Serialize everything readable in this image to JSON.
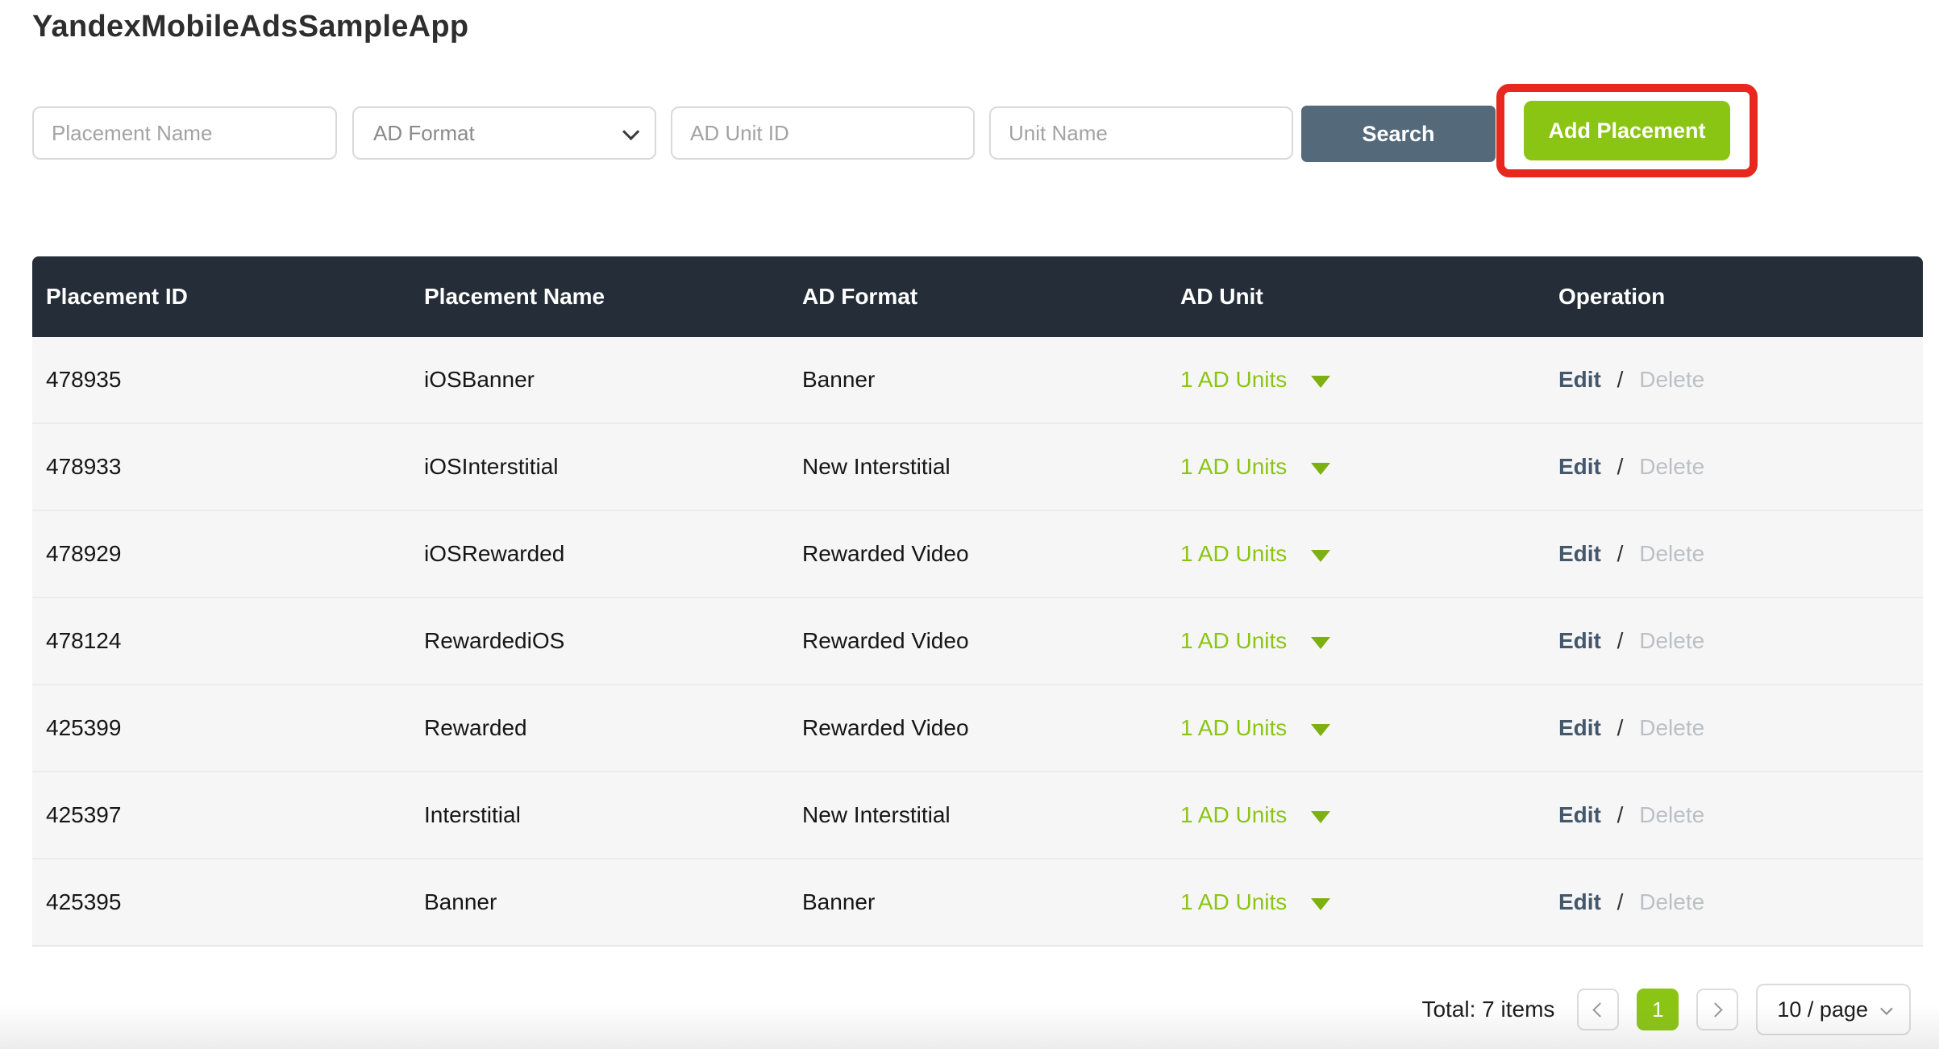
{
  "page": {
    "title": "YandexMobileAdsSampleApp"
  },
  "filters": {
    "placement_name_placeholder": "Placement Name",
    "ad_format_value": "AD Format",
    "ad_unit_id_placeholder": "AD Unit ID",
    "unit_name_placeholder": "Unit Name",
    "search_label": "Search",
    "add_placement_label": "Add Placement"
  },
  "table": {
    "columns": [
      "Placement ID",
      "Placement Name",
      "AD Format",
      "AD Unit",
      "Operation"
    ],
    "operation_separator": "/",
    "rows": [
      {
        "placement_id": "478935",
        "placement_name": "iOSBanner",
        "ad_format": "Banner",
        "ad_unit": "1 AD Units",
        "edit_label": "Edit",
        "delete_label": "Delete"
      },
      {
        "placement_id": "478933",
        "placement_name": "iOSInterstitial",
        "ad_format": "New Interstitial",
        "ad_unit": "1 AD Units",
        "edit_label": "Edit",
        "delete_label": "Delete"
      },
      {
        "placement_id": "478929",
        "placement_name": "iOSRewarded",
        "ad_format": "Rewarded Video",
        "ad_unit": "1 AD Units",
        "edit_label": "Edit",
        "delete_label": "Delete"
      },
      {
        "placement_id": "478124",
        "placement_name": "RewardediOS",
        "ad_format": "Rewarded Video",
        "ad_unit": "1 AD Units",
        "edit_label": "Edit",
        "delete_label": "Delete"
      },
      {
        "placement_id": "425399",
        "placement_name": "Rewarded",
        "ad_format": "Rewarded Video",
        "ad_unit": "1 AD Units",
        "edit_label": "Edit",
        "delete_label": "Delete"
      },
      {
        "placement_id": "425397",
        "placement_name": "Interstitial",
        "ad_format": "New Interstitial",
        "ad_unit": "1 AD Units",
        "edit_label": "Edit",
        "delete_label": "Delete"
      },
      {
        "placement_id": "425395",
        "placement_name": "Banner",
        "ad_format": "Banner",
        "ad_unit": "1 AD Units",
        "edit_label": "Edit",
        "delete_label": "Delete"
      }
    ]
  },
  "pagination": {
    "total_text": "Total: 7 items",
    "current_page": "1",
    "page_size_value": "10 / page"
  },
  "colors": {
    "accent_green": "#8bc514",
    "slate_button": "#54697a",
    "table_header_bg": "#252e38",
    "annotation_red": "#e7281e",
    "edit_link": "#44576b",
    "delete_muted": "#bcc0c4"
  }
}
